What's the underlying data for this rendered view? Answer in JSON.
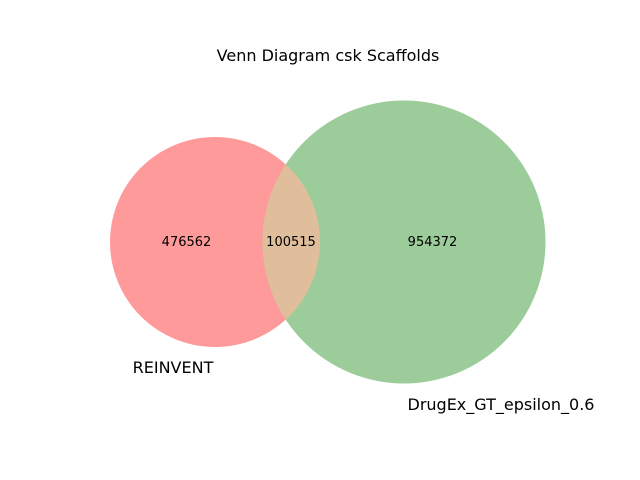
{
  "diagram": {
    "type": "venn2",
    "title": "Venn Diagram csk Scaffolds",
    "sets": [
      {
        "name": "REINVENT",
        "color": "#ff9a9b"
      },
      {
        "name": "DrugEx_GT_epsilon_0.6",
        "color": "#9bcc99"
      }
    ],
    "intersection_color": "#e0be9b",
    "regions": {
      "only_a": "476562",
      "a_and_b": "100515",
      "only_b": "954372"
    }
  }
}
